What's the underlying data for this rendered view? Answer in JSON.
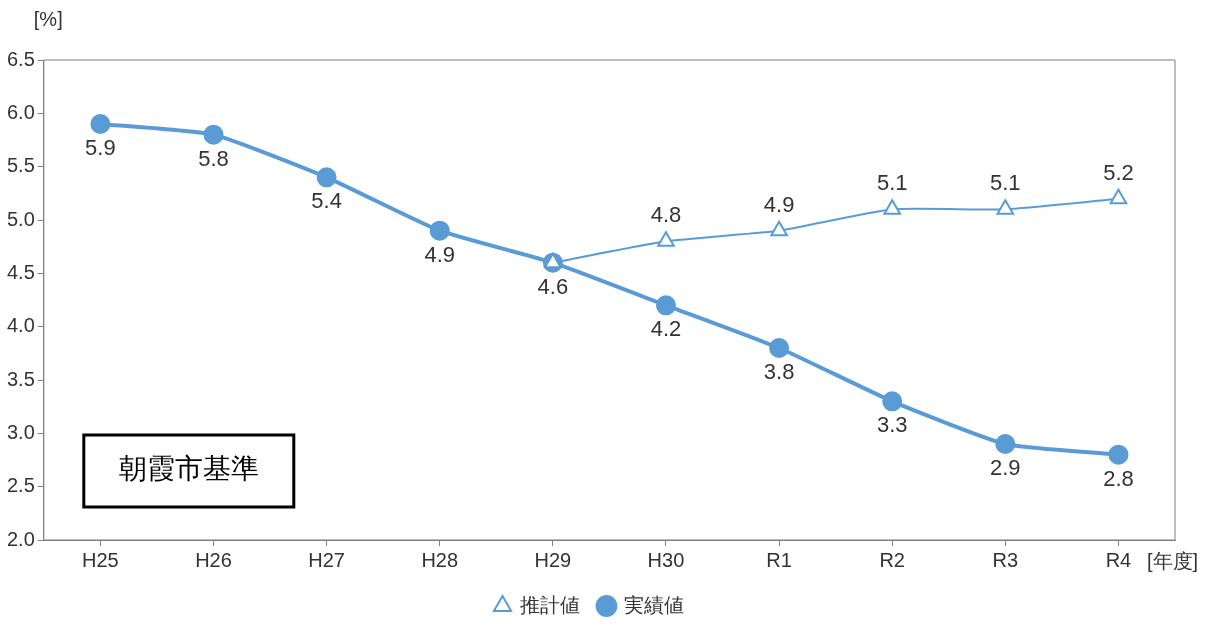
{
  "chart_data": {
    "type": "line",
    "xlabel": "[年度]",
    "ylabel": "[%]",
    "categories": [
      "H25",
      "H26",
      "H27",
      "H28",
      "H29",
      "H30",
      "R1",
      "R2",
      "R3",
      "R4"
    ],
    "series": [
      {
        "name": "推計値",
        "color": "#5b9bd5",
        "marker": "triangle",
        "values": [
          null,
          null,
          null,
          null,
          4.6,
          4.8,
          4.9,
          5.1,
          5.1,
          5.2
        ],
        "value_labels": [
          null,
          null,
          null,
          null,
          null,
          "4.8",
          "4.9",
          "5.1",
          "5.1",
          "5.2"
        ]
      },
      {
        "name": "実績値",
        "color": "#5b9bd5",
        "marker": "circle",
        "values": [
          5.9,
          5.8,
          5.4,
          4.9,
          4.6,
          4.2,
          3.8,
          3.3,
          2.9,
          2.8
        ],
        "value_labels": [
          "5.9",
          "5.8",
          "5.4",
          "4.9",
          "4.6",
          "4.2",
          "3.8",
          "3.3",
          "2.9",
          "2.8"
        ]
      }
    ],
    "ylim": [
      2,
      6.5
    ],
    "yticks": [
      {
        "value": 2,
        "label": "2.0"
      },
      {
        "value": 2.5,
        "label": "2.5"
      },
      {
        "value": 3,
        "label": "3.0"
      },
      {
        "value": 3.5,
        "label": "3.5"
      },
      {
        "value": 4,
        "label": "4.0"
      },
      {
        "value": 4.5,
        "label": "4.5"
      },
      {
        "value": 5,
        "label": "5.0"
      },
      {
        "value": 5.5,
        "label": "5.5"
      },
      {
        "value": 6,
        "label": "6.0"
      },
      {
        "value": 6.5,
        "label": "6.5"
      }
    ],
    "annotations": [
      "朝霞市基準"
    ],
    "grid": false,
    "legend": "bottom",
    "line_style": "solid"
  }
}
